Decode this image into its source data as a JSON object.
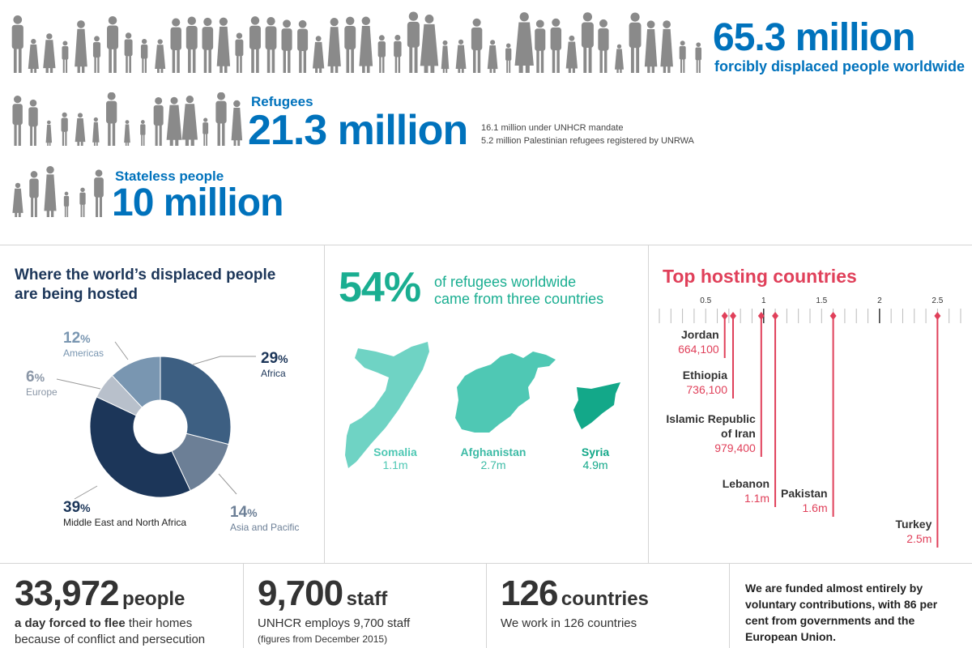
{
  "header": {
    "total_value": "65.3 million",
    "total_label": "forcibly displaced people worldwide",
    "refugees_label": "Refugees",
    "refugees_value": "21.3 million",
    "refugees_note_1": "16.1 million under UNHCR mandate",
    "refugees_note_2": "5.2 million Palestinian refugees registered by UNRWA",
    "stateless_label": "Stateless people",
    "stateless_value": "10 million"
  },
  "hosted": {
    "title_line1": "Where the world’s displaced people",
    "title_line2": "are being hosted",
    "slices": [
      {
        "label": "Africa",
        "pct_num": "29",
        "pct_sym": "%",
        "value": 29,
        "color": "#3d5f82"
      },
      {
        "label": "Asia and Pacific",
        "pct_num": "14",
        "pct_sym": "%",
        "value": 14,
        "color": "#6c7f96"
      },
      {
        "label": "Middle East and North Africa",
        "pct_num": "39",
        "pct_sym": "%",
        "value": 39,
        "color": "#1c3659"
      },
      {
        "label": "Europe",
        "pct_num": "6",
        "pct_sym": "%",
        "value": 6,
        "color": "#b8c0cb"
      },
      {
        "label": "Americas",
        "pct_num": "12",
        "pct_sym": "%",
        "value": 12,
        "color": "#7996b1"
      }
    ]
  },
  "origins": {
    "pct": "54%",
    "text_line1": "of refugees worldwide",
    "text_line2": "came from three countries",
    "countries": [
      {
        "name": "Somalia",
        "value": "1.1m",
        "color": "#6fd3c4"
      },
      {
        "name": "Afghanistan",
        "value": "2.7m",
        "color": "#4fc8b4"
      },
      {
        "name": "Syria",
        "value": "4.9m",
        "color": "#13a889"
      }
    ]
  },
  "hosting": {
    "title": "Top hosting countries",
    "ticks": [
      "0.5",
      "1",
      "1.5",
      "2",
      "2.5"
    ],
    "countries": [
      {
        "name_line1": "Jordan",
        "name_line2": "",
        "label": "664,100",
        "value": 0.6641
      },
      {
        "name_line1": "Ethiopia",
        "name_line2": "",
        "label": "736,100",
        "value": 0.7361
      },
      {
        "name_line1": "Islamic Republic",
        "name_line2": "of Iran",
        "label": "979,400",
        "value": 0.9794
      },
      {
        "name_line1": "Lebanon",
        "name_line2": "",
        "label": "1.1m",
        "value": 1.1
      },
      {
        "name_line1": "Pakistan",
        "name_line2": "",
        "label": "1.6m",
        "value": 1.6
      },
      {
        "name_line1": "Turkey",
        "name_line2": "",
        "label": "2.5m",
        "value": 2.5
      }
    ]
  },
  "stats": {
    "flee_num": "33,972",
    "flee_unit": "people",
    "flee_desc_bold": "a day forced to flee",
    "flee_desc_rest": " their homes",
    "flee_desc_2": "because of conflict and persecution",
    "staff_num": "9,700",
    "staff_unit": "staff",
    "staff_desc": "UNHCR employs 9,700 staff",
    "staff_note": "(figures from December 2015)",
    "countries_num": "126",
    "countries_unit": "countries",
    "countries_desc": "We work in 126 countries",
    "funding_text": "We are funded almost entirely by voluntary contributions, with 86 per cent from governments and the European Union."
  },
  "chart_data": [
    {
      "type": "pie",
      "title": "Where the world’s displaced people are being hosted",
      "categories": [
        "Africa",
        "Asia and Pacific",
        "Middle East and North Africa",
        "Europe",
        "Americas"
      ],
      "values": [
        29,
        14,
        39,
        6,
        12
      ],
      "unit": "%"
    },
    {
      "type": "scatter",
      "title": "Top hosting countries",
      "categories": [
        "Jordan",
        "Ethiopia",
        "Islamic Republic of Iran",
        "Lebanon",
        "Pakistan",
        "Turkey"
      ],
      "values": [
        0.6641,
        0.7361,
        0.9794,
        1.1,
        1.6,
        2.5
      ],
      "unit": "million",
      "xlim": [
        0.1,
        2.7
      ]
    }
  ],
  "colors": {
    "blue": "#0072bc",
    "navy": "#1c3659",
    "teal": "#1aae91",
    "red": "#e0405a",
    "silhouette": "#8a8a8a"
  }
}
